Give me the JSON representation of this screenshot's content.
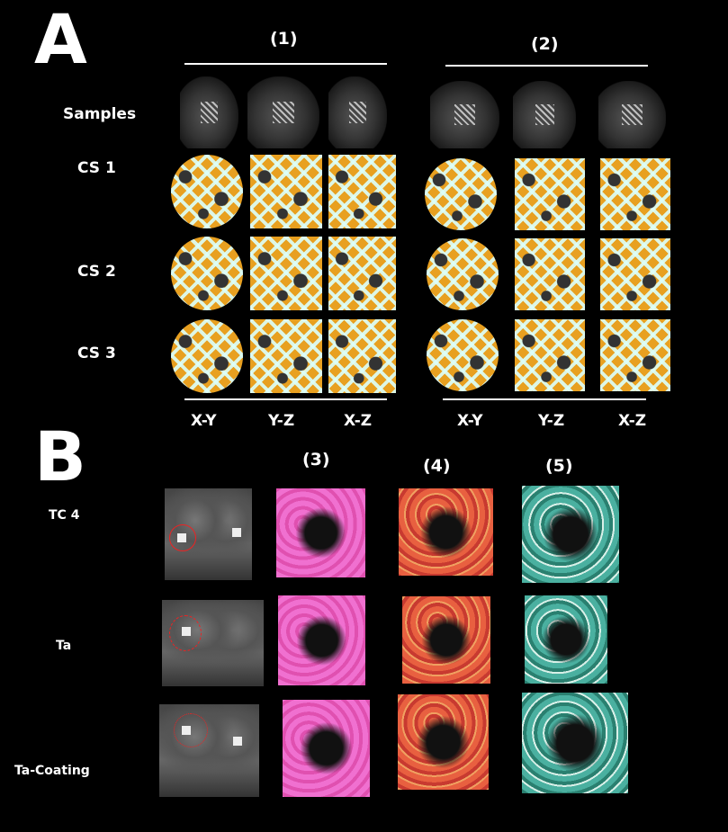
{
  "panel_a": {
    "letter": "A",
    "group_headers": [
      "(1)",
      "(2)"
    ],
    "row_labels": [
      "Samples",
      "CS 1",
      "CS 2",
      "CS 3"
    ],
    "column_labels": [
      "X-Y",
      "Y-Z",
      "X-Z",
      "X-Y",
      "Y-Z",
      "X-Z"
    ],
    "colors": {
      "bone": "#e8a020",
      "implant": "#dcfffa"
    }
  },
  "panel_b": {
    "letter": "B",
    "column_headers": [
      "(3)",
      "(4)",
      "(5)"
    ],
    "row_labels": [
      "TC 4",
      "Ta",
      "Ta-Coating"
    ],
    "colors": {
      "marker_circle": "#e22222"
    }
  }
}
